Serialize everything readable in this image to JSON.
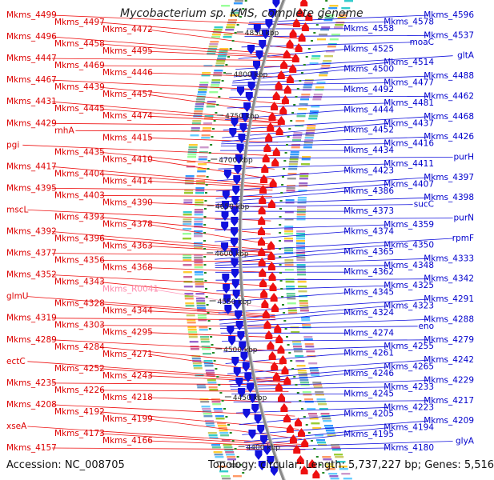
{
  "title": "Mycobacterium sp. KMS, complete genome",
  "footer": {
    "accession": "Accession: NC_008705",
    "summary": "Topology: circular; Length: 5,737,227 bp; Genes: 5,516"
  },
  "colors": {
    "forward": "#ee1111",
    "reverse": "#1111dd",
    "rna": "#ff99bb",
    "backbone": "#888888",
    "tick": "#228822"
  },
  "kbp_markers": [
    "4850 kbp",
    "4800 kbp",
    "4750 kbp",
    "4700 kbp",
    "4650 kbp",
    "4600 kbp",
    "4550 kbp",
    "4500 kbp",
    "4450 kbp",
    "4400 kbp"
  ],
  "left_labels": [
    "Mkms_4499",
    "Mkms_4497",
    "Mkms_4472",
    "Mkms_4496",
    "Mkms_4458",
    "Mkms_4495",
    "Mkms_4447",
    "Mkms_4469",
    "Mkms_4446",
    "Mkms_4467",
    "Mkms_4439",
    "Mkms_4457",
    "Mkms_4431",
    "Mkms_4445",
    "Mkms_4474",
    "Mkms_4429",
    "rnhA",
    "Mkms_4415",
    "pgi",
    "Mkms_4435",
    "Mkms_4410",
    "Mkms_4417",
    "Mkms_4404",
    "Mkms_4414",
    "Mkms_4395",
    "Mkms_4403",
    "Mkms_4390",
    "mscL",
    "Mkms_4393",
    "Mkms_4378",
    "Mkms_4392",
    "Mkms_4396",
    "Mkms_4363",
    "Mkms_4377",
    "Mkms_4356",
    "Mkms_4368",
    "Mkms_4352",
    "Mkms_4343",
    "Mkms_R0041",
    "glmU",
    "Mkms_4328",
    "Mkms_4344",
    "Mkms_4319",
    "Mkms_4303",
    "Mkms_4295",
    "Mkms_4289",
    "Mkms_4284",
    "Mkms_4271",
    "ectC",
    "Mkms_4252",
    "Mkms_4243",
    "Mkms_4235",
    "Mkms_4226",
    "Mkms_4218",
    "Mkms_4208",
    "Mkms_4192",
    "Mkms_4199",
    "xseA",
    "Mkms_4173",
    "Mkms_4166",
    "Mkms_4157"
  ],
  "right_labels": [
    "Mkms_4596",
    "Mkms_4578",
    "Mkms_4558",
    "Mkms_4537",
    "moaC",
    "Mkms_4525",
    "gltA",
    "Mkms_4514",
    "Mkms_4500",
    "Mkms_4488",
    "Mkms_4477",
    "Mkms_4492",
    "Mkms_4462",
    "Mkms_4481",
    "Mkms_4444",
    "Mkms_4468",
    "Mkms_4437",
    "Mkms_4452",
    "Mkms_4426",
    "Mkms_4416",
    "Mkms_4434",
    "purH",
    "Mkms_4411",
    "Mkms_4423",
    "Mkms_4397",
    "Mkms_4407",
    "Mkms_4386",
    "Mkms_4398",
    "sucC",
    "Mkms_4373",
    "purN",
    "Mkms_4359",
    "Mkms_4374",
    "rpmF",
    "Mkms_4350",
    "Mkms_4365",
    "Mkms_4333",
    "Mkms_4348",
    "Mkms_4362",
    "Mkms_4342",
    "Mkms_4325",
    "Mkms_4345",
    "Mkms_4291",
    "Mkms_4323",
    "Mkms_4324",
    "Mkms_4288",
    "eno",
    "Mkms_4274",
    "Mkms_4279",
    "Mkms_4255",
    "Mkms_4261",
    "Mkms_4242",
    "Mkms_4265",
    "Mkms_4246",
    "Mkms_4229",
    "Mkms_4233",
    "Mkms_4245",
    "Mkms_4217",
    "Mkms_4223",
    "Mkms_4205",
    "Mkms_4209",
    "Mkms_4194",
    "Mkms_4195",
    "glyA",
    "Mkms_4180"
  ]
}
